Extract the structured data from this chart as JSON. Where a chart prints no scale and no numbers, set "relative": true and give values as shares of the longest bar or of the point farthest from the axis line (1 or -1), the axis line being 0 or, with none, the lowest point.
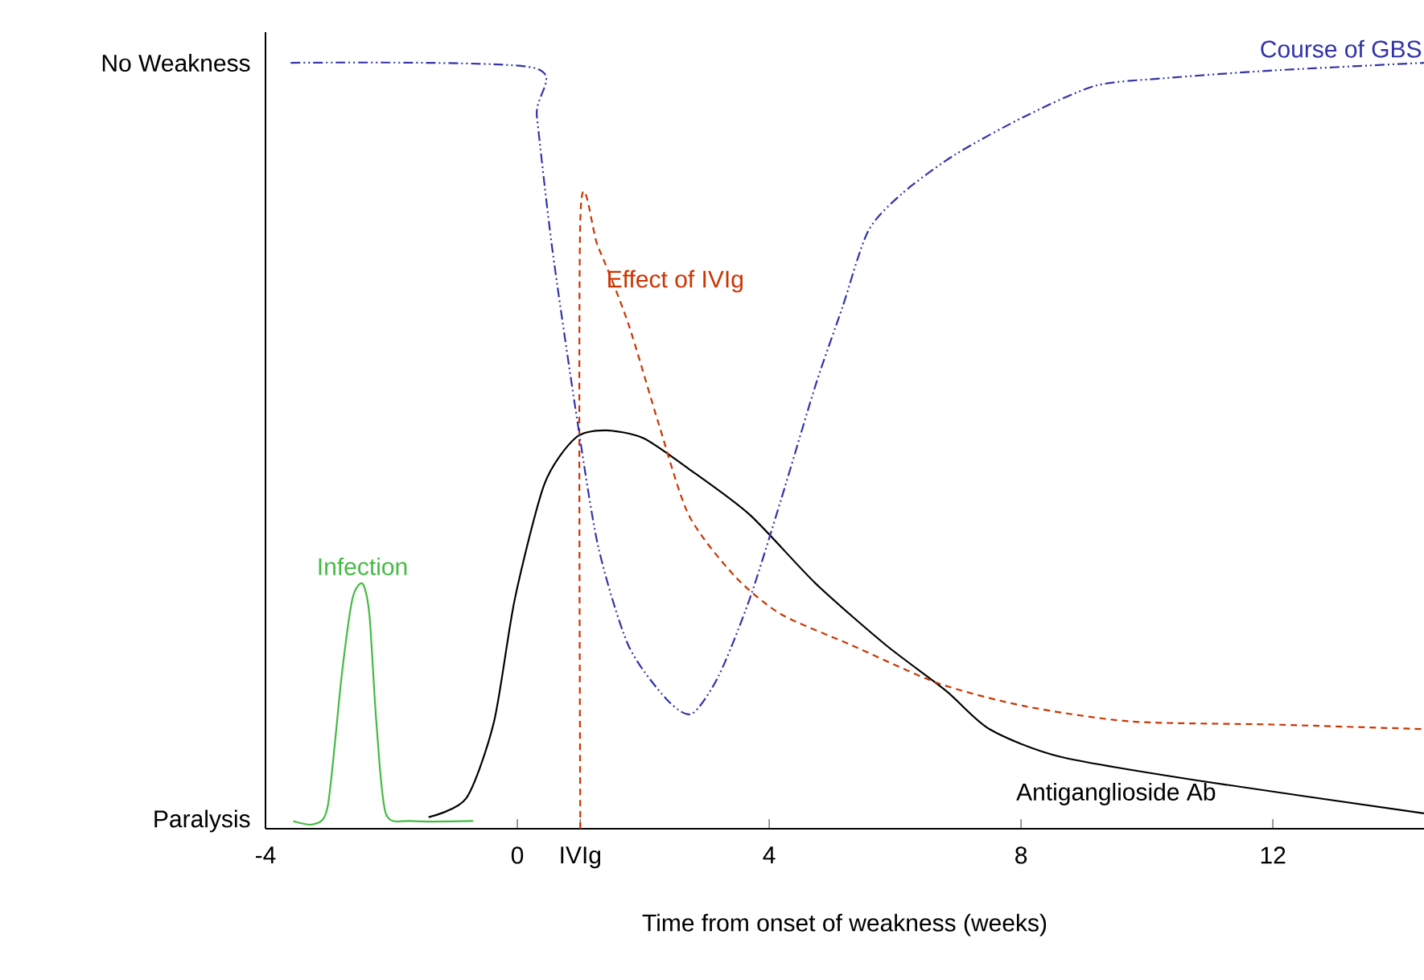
{
  "chart_data": {
    "type": "line",
    "xlabel": "Time from onset of weakness (weeks)",
    "xlim": [
      -4,
      14.4
    ],
    "xticks": [
      -4,
      0,
      {
        "value": 1,
        "label": "IVIg"
      },
      4,
      8,
      12
    ],
    "relative": true,
    "annotations": [
      "No Weakness",
      "Paralysis"
    ],
    "grid": false,
    "legend": false,
    "marker": "none",
    "series": [
      {
        "name": "Infection",
        "color": "#44bb44",
        "line_style": "solid",
        "x": [
          -3.56,
          -3.23,
          -3.01,
          -2.79,
          -2.62,
          -2.46,
          -2.35,
          -2.24,
          -2.09,
          -1.69,
          -0.7
        ],
        "values": [
          0.01,
          0.006,
          0.03,
          0.2,
          0.3,
          0.32,
          0.28,
          0.14,
          0.02,
          0.01,
          0.01
        ]
      },
      {
        "name": "Antiganglioside Ab",
        "color": "#000000",
        "line_style": "solid",
        "x": [
          -1.41,
          -0.81,
          -0.37,
          -0.04,
          0.43,
          0.92,
          1.4,
          2.0,
          2.72,
          3.69,
          4.74,
          5.85,
          6.81,
          7.5,
          8.62,
          10.8,
          14.4
        ],
        "values": [
          0.015,
          0.04,
          0.14,
          0.3,
          0.45,
          0.51,
          0.52,
          0.51,
          0.47,
          0.41,
          0.32,
          0.24,
          0.18,
          0.13,
          0.094,
          0.063,
          0.02
        ]
      },
      {
        "name": "Effect of IVIg",
        "color": "#cc3300",
        "line_style": "dashed",
        "x": [
          1,
          1,
          1.28,
          1.76,
          2.24,
          2.72,
          3.45,
          4.19,
          5.3,
          6.68,
          8.06,
          9.75,
          12,
          14.4
        ],
        "values": [
          0,
          0.795,
          0.76,
          0.66,
          0.53,
          0.41,
          0.33,
          0.28,
          0.24,
          0.19,
          0.16,
          0.14,
          0.136,
          0.13
        ]
      },
      {
        "name": "Course of GBS",
        "color": "#3333aa",
        "line_style": "dashdotted",
        "x": [
          -3.6,
          0.23,
          0.31,
          0.55,
          0.92,
          1.28,
          1.76,
          2.36,
          2.77,
          3.2,
          3.69,
          4.19,
          4.74,
          5.16,
          5.57,
          6.12,
          6.95,
          8.06,
          9.18,
          10.3,
          12,
          14.4
        ],
        "values": [
          1.0,
          0.994,
          0.93,
          0.76,
          0.55,
          0.37,
          0.24,
          0.17,
          0.15,
          0.2,
          0.3,
          0.43,
          0.58,
          0.68,
          0.78,
          0.83,
          0.88,
          0.93,
          0.97,
          0.98,
          0.99,
          1.0
        ]
      }
    ]
  }
}
